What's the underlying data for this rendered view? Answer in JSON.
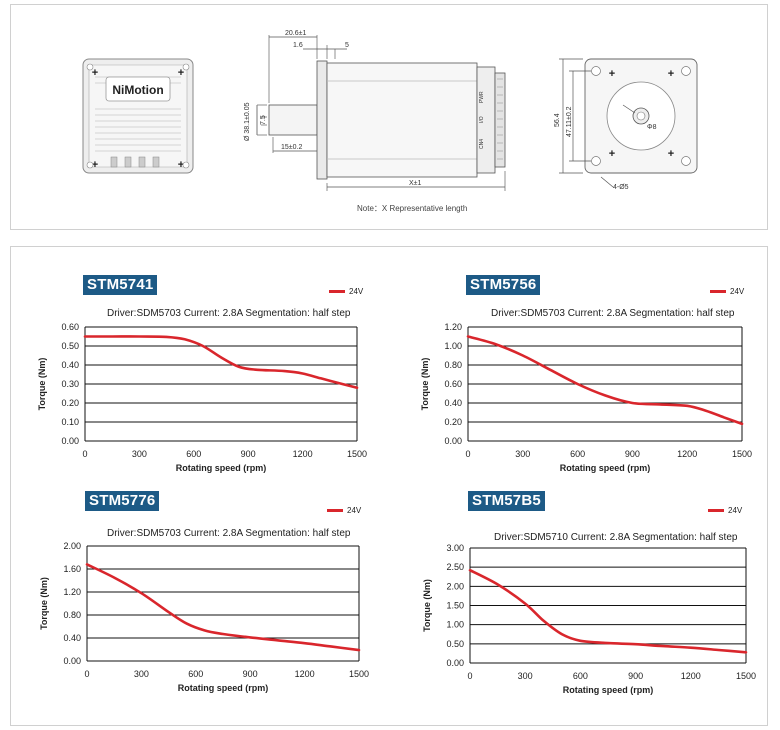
{
  "drawing": {
    "brand": "NiMotion",
    "dims": {
      "d206": "20.6±1",
      "d16": "1.6",
      "d5": "5",
      "d38": "Ø 38.1±0.05",
      "d75": "7.5",
      "d15": "15±0.2",
      "dx": "X±1",
      "d564": "56.4",
      "d4711": "47.11±0.2",
      "d8": "Φ8",
      "d4h": "4-Ø5"
    },
    "connector_labels": [
      "PWR",
      "I/O",
      "CN4"
    ],
    "note": "Note：X Representative length"
  },
  "chart_data": [
    {
      "type": "line",
      "model": "STM5741",
      "title": "STM5741",
      "condition": "Driver:SDM5703   Current: 2.8A   Segmentation: half step",
      "legend": "24V",
      "series_color": "#d9262c",
      "xlabel": "Rotating speed (rpm)",
      "ylabel": "Torque (Nm)",
      "xlim": [
        0,
        1500
      ],
      "ylim": [
        0,
        0.6
      ],
      "xticks": [
        0,
        300,
        600,
        900,
        1200,
        1500
      ],
      "xtick_labels": [
        "0",
        "300",
        "600",
        "900",
        "1200",
        "1500"
      ],
      "yticks": [
        0,
        0.1,
        0.2,
        0.3,
        0.4,
        0.5,
        0.6
      ],
      "ytick_labels": [
        "0.00",
        "0.10",
        "0.20",
        "0.30",
        "0.40",
        "0.50",
        "0.60"
      ],
      "x": [
        0,
        150,
        300,
        450,
        550,
        650,
        750,
        850,
        950,
        1100,
        1200,
        1300,
        1400,
        1500
      ],
      "y": [
        0.55,
        0.55,
        0.55,
        0.548,
        0.535,
        0.5,
        0.44,
        0.39,
        0.375,
        0.368,
        0.355,
        0.33,
        0.305,
        0.28
      ]
    },
    {
      "type": "line",
      "model": "STM5756",
      "title": "STM5756",
      "condition": "Driver:SDM5703   Current: 2.8A   Segmentation: half step",
      "legend": "24V",
      "series_color": "#d9262c",
      "xlabel": "Rotating speed (rpm)",
      "ylabel": "Torque (Nm)",
      "xlim": [
        0,
        1500
      ],
      "ylim": [
        0,
        1.2
      ],
      "xticks": [
        0,
        300,
        600,
        900,
        1200,
        1500
      ],
      "xtick_labels": [
        "0",
        "300",
        "600",
        "900",
        "1200",
        "1500"
      ],
      "yticks": [
        0,
        0.2,
        0.4,
        0.6,
        0.8,
        1.0,
        1.2
      ],
      "ytick_labels": [
        "0.00",
        "0.20",
        "0.40",
        "0.60",
        "0.80",
        "1.00",
        "1.20"
      ],
      "x": [
        0,
        150,
        300,
        450,
        600,
        750,
        900,
        1050,
        1200,
        1300,
        1400,
        1500
      ],
      "y": [
        1.1,
        1.02,
        0.9,
        0.75,
        0.6,
        0.48,
        0.4,
        0.385,
        0.37,
        0.32,
        0.25,
        0.18
      ]
    },
    {
      "type": "line",
      "model": "STM5776",
      "title": "STM5776",
      "condition": "Driver:SDM5703   Current: 2.8A   Segmentation: half step",
      "legend": "24V",
      "series_color": "#d9262c",
      "xlabel": "Rotating speed (rpm)",
      "ylabel": "Torque (Nm)",
      "xlim": [
        0,
        1500
      ],
      "ylim": [
        0,
        2.0
      ],
      "xticks": [
        0,
        300,
        600,
        900,
        1200,
        1500
      ],
      "xtick_labels": [
        "0",
        "300",
        "600",
        "900",
        "1200",
        "1500"
      ],
      "yticks": [
        0,
        0.4,
        0.8,
        1.2,
        1.6,
        2.0
      ],
      "ytick_labels": [
        "0.00",
        "0.40",
        "0.80",
        "1.20",
        "1.60",
        "2.00"
      ],
      "x": [
        0,
        150,
        300,
        450,
        550,
        650,
        750,
        900,
        1050,
        1200,
        1350,
        1500
      ],
      "y": [
        1.68,
        1.45,
        1.18,
        0.85,
        0.65,
        0.53,
        0.47,
        0.41,
        0.36,
        0.31,
        0.25,
        0.19
      ]
    },
    {
      "type": "line",
      "model": "STM57B5",
      "title": "STM57B5",
      "condition": "Driver:SDM5710   Current: 2.8A   Segmentation: half step",
      "legend": "24V",
      "series_color": "#d9262c",
      "xlabel": "Rotating speed (rpm)",
      "ylabel": "Torque (Nm)",
      "xlim": [
        0,
        1500
      ],
      "ylim": [
        0,
        3.0
      ],
      "xticks": [
        0,
        300,
        600,
        900,
        1200,
        1500
      ],
      "xtick_labels": [
        "0",
        "300",
        "600",
        "900",
        "1200",
        "1500"
      ],
      "yticks": [
        0,
        0.5,
        1.0,
        1.5,
        2.0,
        2.5,
        3.0
      ],
      "ytick_labels": [
        "0.00",
        "0.50",
        "1.00",
        "1.50",
        "2.00",
        "2.50",
        "3.00"
      ],
      "x": [
        0,
        150,
        300,
        400,
        500,
        600,
        750,
        900,
        1050,
        1200,
        1350,
        1500
      ],
      "y": [
        2.42,
        2.05,
        1.55,
        1.1,
        0.75,
        0.58,
        0.52,
        0.49,
        0.44,
        0.4,
        0.34,
        0.28
      ]
    }
  ]
}
